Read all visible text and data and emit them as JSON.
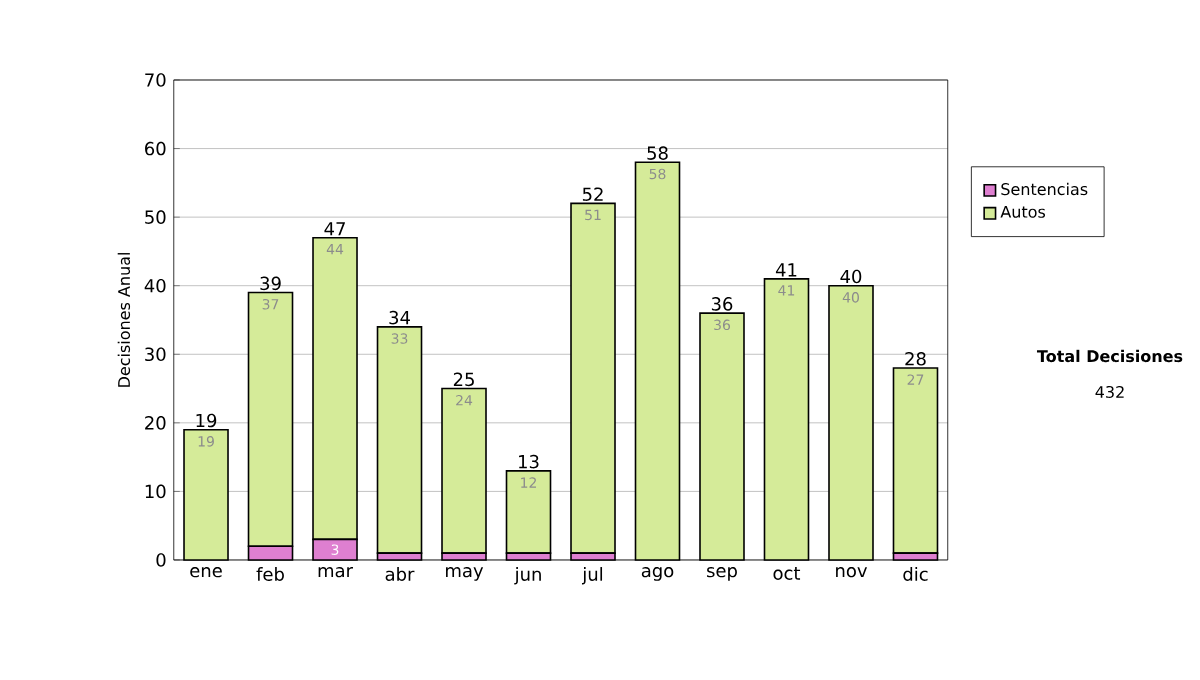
{
  "chart_data": {
    "type": "bar",
    "stacked": true,
    "ylabel": "Decisiones Anual",
    "categories": [
      "ene",
      "feb",
      "mar",
      "abr",
      "may",
      "jun",
      "jul",
      "ago",
      "sep",
      "oct",
      "nov",
      "dic"
    ],
    "series": [
      {
        "name": "Sentencias",
        "color": "#de7fd0",
        "values": [
          0,
          2,
          3,
          1,
          1,
          1,
          1,
          0,
          0,
          0,
          0,
          1
        ],
        "value_labels": [
          null,
          null,
          "3",
          null,
          null,
          null,
          null,
          null,
          null,
          null,
          null,
          null
        ]
      },
      {
        "name": "Autos",
        "color": "#d5eb99",
        "values": [
          19,
          37,
          44,
          33,
          24,
          12,
          51,
          58,
          36,
          41,
          40,
          27
        ],
        "value_labels": [
          "19",
          "37",
          "44",
          "33",
          "24",
          "12",
          "51",
          "58",
          "36",
          "41",
          "40",
          "27"
        ]
      }
    ],
    "totals": [
      "19",
      "39",
      "47",
      "34",
      "25",
      "13",
      "52",
      "58",
      "36",
      "41",
      "40",
      "28"
    ],
    "ylim": [
      0,
      70
    ],
    "yticks": [
      0,
      10,
      20,
      30,
      40,
      50,
      60,
      70
    ],
    "grid": "y",
    "legend": "right",
    "annotations": [
      "**Total Decisiones**",
      "432"
    ]
  }
}
